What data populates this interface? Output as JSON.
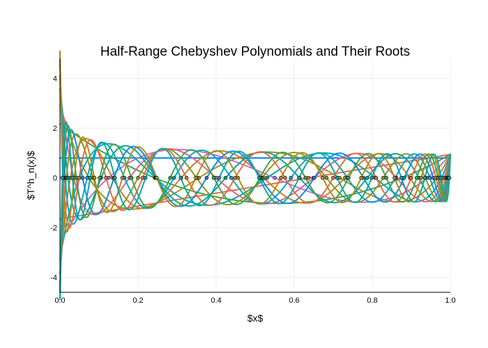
{
  "chart_data": {
    "type": "line",
    "title": "Half-Range Chebyshev Polynomials and Their Roots",
    "xlabel": "$x$",
    "ylabel": "$T^h_n(x)$",
    "xlim": [
      0,
      1
    ],
    "ylim": [
      -4.6,
      4.8
    ],
    "x_ticks": [
      0,
      0.2,
      0.4,
      0.6,
      0.8,
      1
    ],
    "x_tick_labels": [
      "0.0",
      "0.2",
      "0.4",
      "0.6",
      "0.8",
      "1.0"
    ],
    "y_ticks": [
      -4,
      -2,
      0,
      2,
      4
    ],
    "y_tick_labels": [
      "-4",
      "-2",
      "0",
      "2",
      "4"
    ],
    "grid": true,
    "legend": "none",
    "curve_family": "half-range Chebyshev polynomials, degrees 0 to 15",
    "series": [
      {
        "degree": 0,
        "color": "#0f8ae5",
        "values_at_x0": 0.8,
        "values_at_x1": 0.8,
        "roots": []
      },
      {
        "degree": 1,
        "color": "#e26f46",
        "values_at_x0": -1.6,
        "values_at_x1": 0.9,
        "roots": [
          0.64
        ]
      },
      {
        "degree": 2,
        "color": "#3da44d",
        "values_at_x0": 2.1,
        "values_at_x1": 0.9,
        "roots": [
          0.24,
          0.85
        ]
      },
      {
        "degree": 3,
        "color": "#c271d2",
        "values_at_x0": -2.5,
        "values_at_x1": 0.9,
        "roots": [
          0.13,
          0.52,
          0.92
        ]
      },
      {
        "degree": 4,
        "color": "#ac8e18",
        "values_at_x0": 2.8,
        "values_at_x1": 0.9,
        "roots": [
          0.08,
          0.35,
          0.68,
          0.95
        ]
      },
      {
        "degree": 5,
        "color": "#00a9ad",
        "values_at_x0": -3.0,
        "values_at_x1": 0.9,
        "roots": [
          0.05,
          0.25,
          0.52,
          0.79,
          0.97
        ]
      },
      {
        "degree": 6,
        "color": "#ed5e93",
        "values_at_x0": 3.2,
        "values_at_x1": 0.9,
        "roots": [
          0.04,
          0.18,
          0.4,
          0.64,
          0.85,
          0.98
        ]
      },
      {
        "degree": 7,
        "color": "#c68125",
        "values_at_x0": -3.4,
        "values_at_x1": 0.9,
        "roots": [
          0.03,
          0.14,
          0.31,
          0.52,
          0.72,
          0.89,
          0.98
        ]
      },
      {
        "degree": 8,
        "color": "#00a98d",
        "values_at_x0": 3.5,
        "values_at_x1": 0.9,
        "roots": [
          0.02,
          0.11,
          0.25,
          0.43,
          0.61,
          0.78,
          0.92,
          0.99
        ]
      },
      {
        "degree": 9,
        "color": "#8e971e",
        "values_at_x0": -3.7,
        "values_at_x1": 0.9,
        "roots": [
          0.02,
          0.09,
          0.2,
          0.36,
          0.52,
          0.68,
          0.83,
          0.94,
          0.99
        ]
      },
      {
        "degree": 10,
        "color": "#00a6c3",
        "values_at_x0": 3.8,
        "values_at_x1": 0.9,
        "roots": [
          0.01,
          0.07,
          0.17,
          0.3,
          0.44,
          0.59,
          0.74,
          0.86,
          0.95,
          0.99
        ]
      },
      {
        "degree": 11,
        "color": "#0f8ae5",
        "values_at_x0": -3.9,
        "values_at_x1": 0.9,
        "roots": []
      },
      {
        "degree": 12,
        "color": "#e26f46",
        "values_at_x0": 4.0,
        "values_at_x1": 0.9,
        "roots": []
      },
      {
        "degree": 13,
        "color": "#3da44d",
        "values_at_x0": -4.1,
        "values_at_x1": 0.9,
        "roots": []
      },
      {
        "degree": 14,
        "color": "#ac8e18",
        "values_at_x0": 4.3,
        "values_at_x1": 0.9,
        "roots": []
      },
      {
        "degree": 15,
        "color": "#00a9ad",
        "values_at_x0": -4.5,
        "values_at_x1": 0.9,
        "roots": []
      }
    ]
  }
}
